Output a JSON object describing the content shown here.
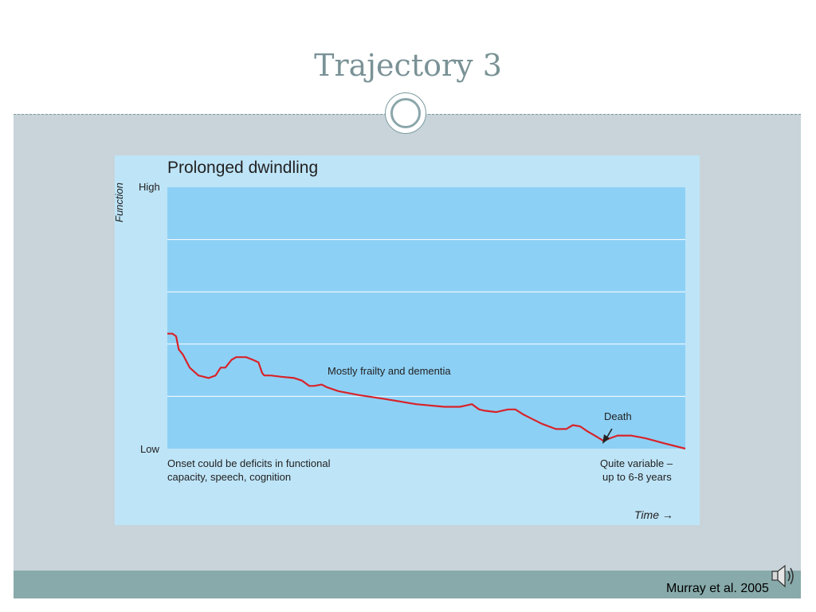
{
  "slide": {
    "title": "Trajectory 3",
    "citation": "Murray et al. 2005"
  },
  "icons": {
    "ornament": "circle-ornament",
    "audio": "speaker-icon"
  },
  "chart_data": {
    "type": "line",
    "title": "Prolonged dwindling",
    "ylabel": "Function",
    "xlabel": "Time",
    "y_ticks": [
      "High",
      "Low"
    ],
    "ylim": [
      0,
      100
    ],
    "xlim": [
      0,
      100
    ],
    "grid": true,
    "colors": {
      "line": "#d8232a",
      "plot_bg": "#8dd0f5",
      "panel_bg": "#bee4f7",
      "grid": "#ffffff"
    },
    "series": [
      {
        "x": [
          0,
          1,
          1.7,
          2.2,
          3,
          4.3,
          6,
          8,
          9.3,
          10.3,
          11.2,
          12.4,
          13.3,
          14.1,
          15.2,
          16.5,
          17.6,
          18.3,
          18.7,
          20,
          22,
          24.5,
          26,
          27.4,
          28.3,
          29.8,
          30.8,
          33,
          37,
          42,
          48,
          53.5,
          56.5,
          58.8,
          60.2,
          61.3,
          63.5,
          65.8,
          67.2,
          68.8,
          70.3,
          72.3,
          75,
          77,
          78.3,
          79.7,
          81.2,
          82.5,
          84.2,
          85.5,
          86.9,
          89.5,
          92.3,
          96,
          100
        ],
        "y": [
          44,
          44,
          43,
          38,
          36,
          31,
          28,
          27,
          28,
          31,
          31,
          34,
          35,
          35,
          35,
          34,
          33,
          29,
          28,
          28,
          27.5,
          27,
          26,
          24,
          24,
          24.5,
          23.5,
          22,
          20.5,
          19,
          17,
          16,
          16,
          17,
          15,
          14.5,
          14,
          15,
          15,
          13,
          11.5,
          9.5,
          7.5,
          7.5,
          9,
          8.5,
          6.5,
          5,
          3,
          4,
          5,
          5,
          4,
          2,
          0
        ]
      }
    ],
    "annotations": {
      "middle": "Mostly frailty and dementia",
      "death": "Death",
      "onset": [
        "Onset could be deficits in functional",
        "capacity, speech, cognition"
      ],
      "duration": [
        "Quite variable –",
        "up to 6-8 years"
      ]
    }
  }
}
